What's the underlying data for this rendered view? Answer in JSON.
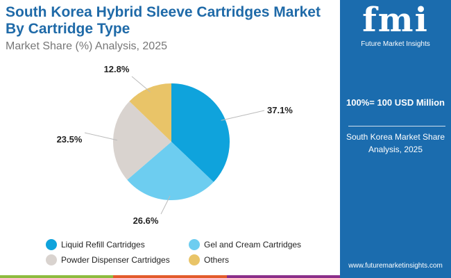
{
  "header": {
    "title": "South Korea Hybrid Sleeve Cartridges Market By Cartridge Type",
    "subtitle": "Market Share (%) Analysis, 2025"
  },
  "chart_data": {
    "type": "pie",
    "categories": [
      "Liquid Refill Cartridges",
      "Gel and Cream Cartridges",
      "Powder Dispenser Cartridges",
      "Others"
    ],
    "values": [
      37.1,
      26.6,
      23.5,
      12.8
    ],
    "labels": [
      "37.1%",
      "26.6%",
      "23.5%",
      "12.8%"
    ],
    "colors": [
      "#0fa3dc",
      "#6dcdf0",
      "#d9d3cf",
      "#e9c468"
    ],
    "legend_position": "bottom"
  },
  "panel": {
    "logo": "fmi",
    "logo_text": "Future Market Insights",
    "total": "100%= 100 USD Million",
    "description": "South Korea Market Share Analysis, 2025",
    "url": "www.futuremarketinsights.com"
  },
  "footer_colors": [
    "#8dbb3f",
    "#e35b2b",
    "#8b2e8a"
  ]
}
